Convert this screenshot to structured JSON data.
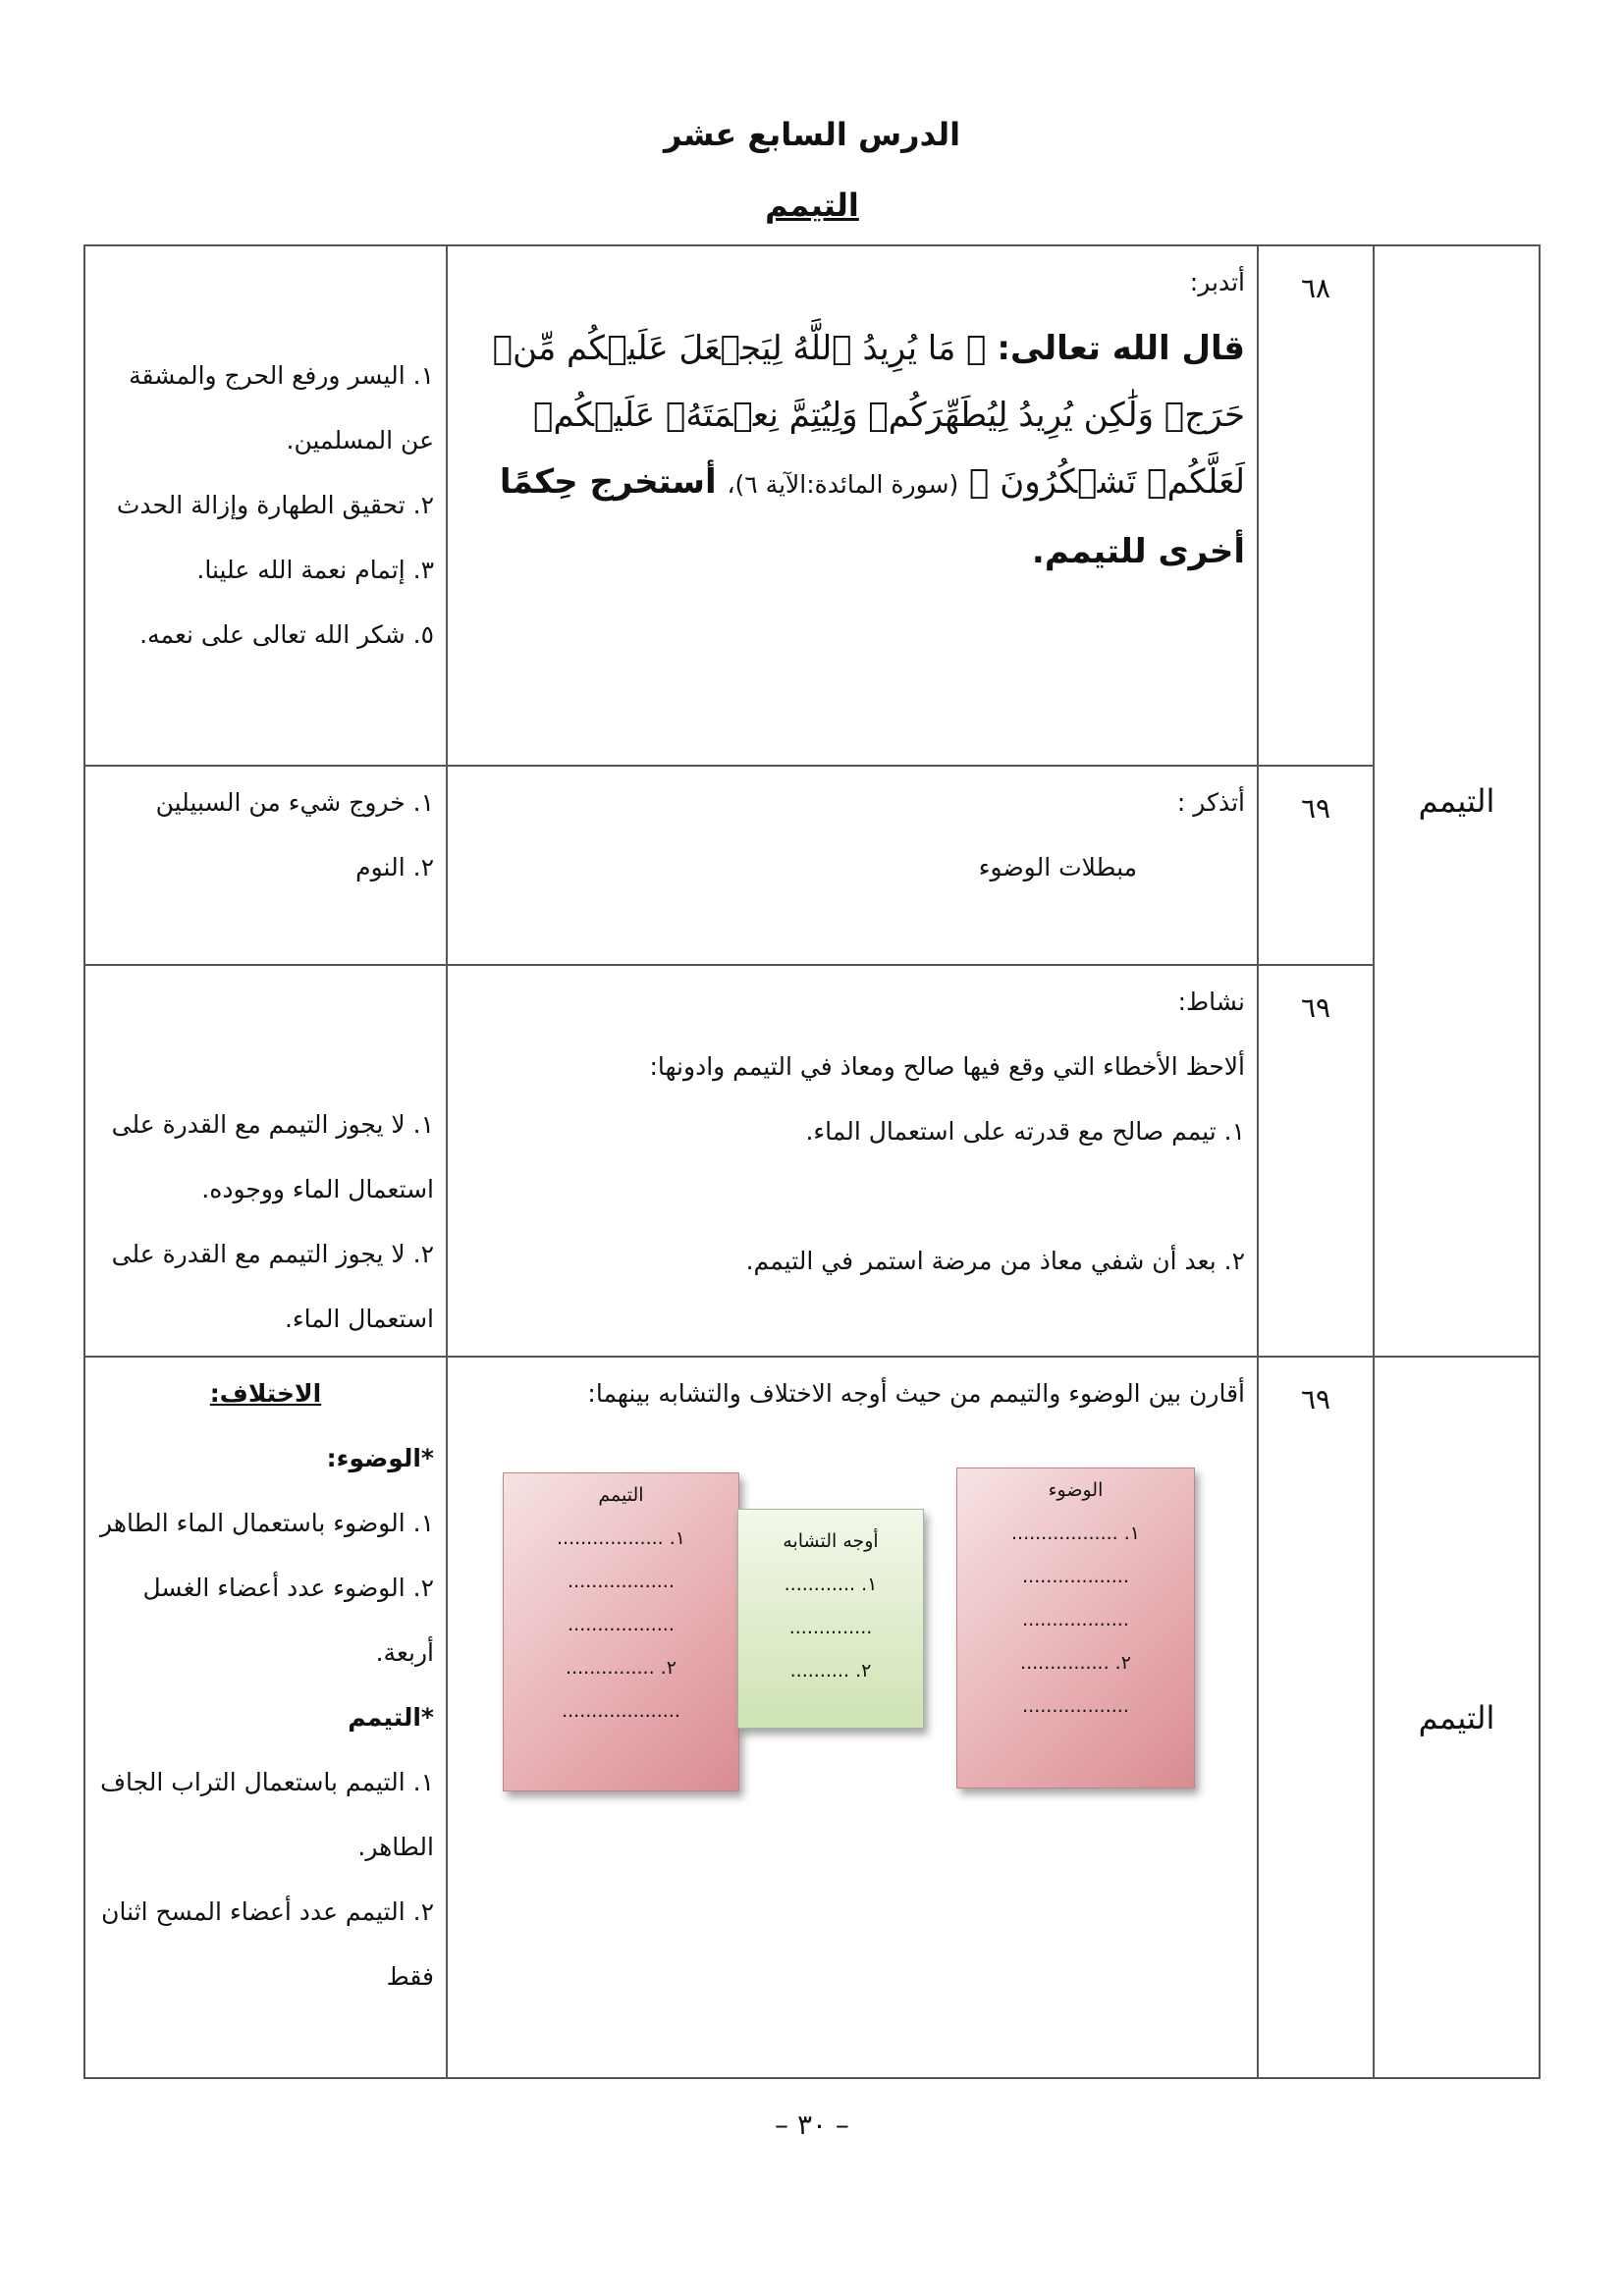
{
  "header": {
    "title": "الدرس السابع عشر",
    "subtitle": "التيمم"
  },
  "table": {
    "topics": [
      "التيمم",
      "التيمم"
    ],
    "rows": [
      {
        "page": "٦٨",
        "prompt": "أتدبر:",
        "intro": "قال الله تعالى:",
        "verse": "﴿ مَا يُرِيدُ ٱللَّهُ لِيَجۡعَلَ عَلَيۡكُم مِّنۡ حَرَجٖ وَلَٰكِن يُرِيدُ لِيُطَهِّرَكُمۡ وَلِيُتِمَّ نِعۡمَتَهُۥ عَلَيۡكُمۡ لَعَلَّكُمۡ تَشۡكُرُونَ ﴾",
        "citation": "(سورة المائدة:الآية ٦)،",
        "task": "أستخرج حِكمًا أخرى للتيمم.",
        "answers": [
          "١. اليسر ورفع الحرج والمشقة عن المسلمين.",
          "٢. تحقيق الطهارة وإزالة الحدث",
          "٣. إتمام نعمة الله علينا.",
          "٥. شكر الله تعالى على نعمه."
        ]
      },
      {
        "page": "٦٩",
        "prompt": "أتذكر :",
        "content": "مبطلات الوضوء",
        "answers": [
          "١. خروج شيء من السبيلين",
          "٢. النوم"
        ]
      },
      {
        "page": "٦٩",
        "prompt": "نشاط:",
        "content": [
          "ألاحظ الأخطاء التي وقع فيها صالح ومعاذ في التيمم وادونها:",
          "١. تيمم صالح مع قدرته على استعمال الماء.",
          "٢. بعد أن شفي معاذ من مرضة استمر في التيمم."
        ],
        "answers": [
          "١. لا يجوز التيمم مع القدرة على استعمال الماء ووجوده.",
          "٢. لا يجوز التيمم مع القدرة على استعمال الماء."
        ]
      },
      {
        "page": "٦٩",
        "prompt": "أقارن بين الوضوء والتيمم من حيث أوجه الاختلاف والتشابه بينهما:",
        "diagram": {
          "wudu": {
            "title": "الوضوء",
            "lines": [
              "١. ..................",
              "..................",
              "..................",
              "٢. ...............",
              ".................."
            ]
          },
          "similar": {
            "title": "أوجه التشابه",
            "lines": [
              "١. ............",
              "..............",
              "٢. .........."
            ]
          },
          "tayammum": {
            "title": "التيمم",
            "lines": [
              "١. ..................",
              "..................",
              "..................",
              "٢. ...............",
              "...................."
            ]
          }
        },
        "answers": {
          "heading": "الاختلاف:",
          "wudu_label": "*الوضوء:",
          "wudu": [
            "١. الوضوء باستعمال الماء الطاهر",
            "٢. الوضوء عدد أعضاء الغسل أربعة."
          ],
          "tayammum_label": "*التيمم",
          "tayammum": [
            "١. التيمم باستعمال التراب الجاف الطاهر.",
            "٢. التيمم عدد أعضاء المسح اثنان فقط"
          ]
        }
      }
    ]
  },
  "footer": {
    "page": "– ٣٠ –"
  }
}
